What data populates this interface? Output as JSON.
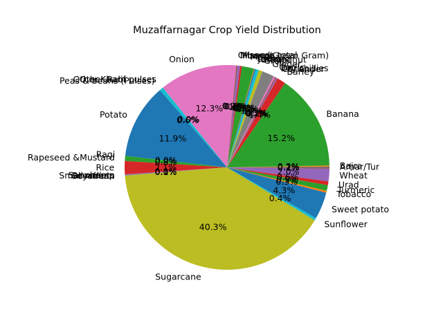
{
  "chart_data": {
    "type": "pie",
    "title": "Muzaffarnagar Crop Yield Distribution",
    "start_angle_deg": 0,
    "direction": "counterclockwise",
    "autopct_format": "{:.1f}%",
    "slices": [
      {
        "label": "Arhar/Tur",
        "value": 0.1,
        "color": "#1f77b4"
      },
      {
        "label": "Bajra",
        "value": 0.2,
        "color": "#ff7f0e"
      },
      {
        "label": "Banana",
        "value": 15.2,
        "color": "#2ca02c"
      },
      {
        "label": "Barley",
        "value": 1.4,
        "color": "#d62728"
      },
      {
        "label": "Coriander",
        "value": 0.2,
        "color": "#9467bd"
      },
      {
        "label": "Dry chillies",
        "value": 0.2,
        "color": "#8c564b"
      },
      {
        "label": "Garlic",
        "value": 0.3,
        "color": "#e377c2"
      },
      {
        "label": "Ginger",
        "value": 1.9,
        "color": "#7f7f7f"
      },
      {
        "label": "Gram",
        "value": 0.6,
        "color": "#bcbd22"
      },
      {
        "label": "Groundnut",
        "value": 0.5,
        "color": "#17becf"
      },
      {
        "label": "Jowar",
        "value": 0.2,
        "color": "#1f77b4"
      },
      {
        "label": "Linseed",
        "value": 0.1,
        "color": "#ff7f0e"
      },
      {
        "label": "Maize",
        "value": 1.9,
        "color": "#2ca02c"
      },
      {
        "label": "Masoor",
        "value": 0.3,
        "color": "#d62728"
      },
      {
        "label": "Moong(Green Gram)",
        "value": 0.4,
        "color": "#9467bd"
      },
      {
        "label": "Oilseeds total",
        "value": 0.2,
        "color": "#8c564b"
      },
      {
        "label": "Onion",
        "value": 12.3,
        "color": "#e377c2"
      },
      {
        "label": "Other Kharif pulses",
        "value": 0.0,
        "color": "#7f7f7f"
      },
      {
        "label": "Other Rabi pulses",
        "value": 0.0,
        "color": "#bcbd22"
      },
      {
        "label": "Peas & beans (Pulses)",
        "value": 0.6,
        "color": "#17becf"
      },
      {
        "label": "Potato",
        "value": 11.9,
        "color": "#1f77b4"
      },
      {
        "label": "Ragi",
        "value": 0.0,
        "color": "#ff7f0e"
      },
      {
        "label": "Rapeseed &Mustard",
        "value": 0.8,
        "color": "#2ca02c"
      },
      {
        "label": "Rice",
        "value": 2.1,
        "color": "#d62728"
      },
      {
        "label": "Sannhamp",
        "value": 0.1,
        "color": "#9467bd"
      },
      {
        "label": "Sesamum",
        "value": 0.0,
        "color": "#8c564b"
      },
      {
        "label": "Small millets",
        "value": 0.0,
        "color": "#e377c2"
      },
      {
        "label": "Soyabean",
        "value": 0.1,
        "color": "#7f7f7f"
      },
      {
        "label": "Sugarcane",
        "value": 40.3,
        "color": "#bcbd22"
      },
      {
        "label": "Sunflower",
        "value": 0.4,
        "color": "#17becf"
      },
      {
        "label": "Sweet potato",
        "value": 4.3,
        "color": "#1f77b4"
      },
      {
        "label": "Tobacco",
        "value": 0.3,
        "color": "#ff7f0e"
      },
      {
        "label": "Turmeric",
        "value": 0.9,
        "color": "#2ca02c"
      },
      {
        "label": "Urad",
        "value": 0.6,
        "color": "#d62728"
      },
      {
        "label": "Wheat",
        "value": 2.0,
        "color": "#9467bd"
      },
      {
        "label": "",
        "value": 0.2,
        "color": "#8c564b"
      }
    ]
  }
}
